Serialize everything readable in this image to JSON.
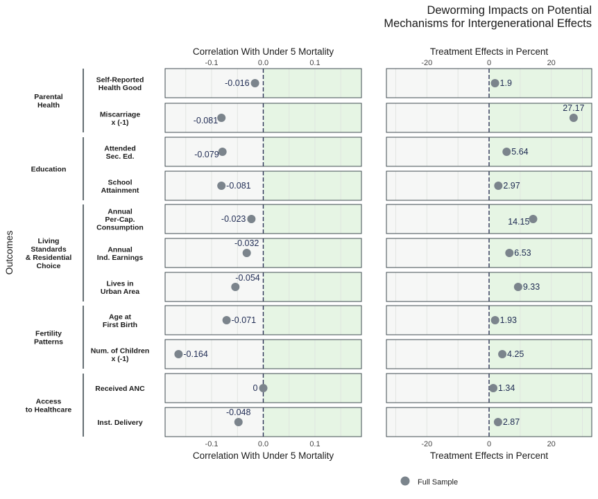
{
  "chart_data": {
    "type": "scatter",
    "title_lines": [
      "Deworming Impacts on Potential",
      "Mechanisms for Intergenerational Effects"
    ],
    "y_axis_label": "Outcomes",
    "legend": {
      "label": "Full Sample",
      "color": "#7b848c",
      "placement": "bottom"
    },
    "panels": [
      {
        "key": "left",
        "xlabel": "Correlation With Under 5 Mortality",
        "xlim": [
          -0.19,
          0.19
        ],
        "ticks": [
          -0.1,
          0.0,
          0.1
        ],
        "tick_labels": [
          "-0.1",
          "0.0",
          "0.1"
        ]
      },
      {
        "key": "right",
        "xlabel": "Treatment Effects in Percent",
        "xlim": [
          -33,
          33
        ],
        "ticks": [
          -20,
          0,
          20
        ],
        "tick_labels": [
          "-20",
          "0",
          "20"
        ]
      }
    ],
    "groups": [
      {
        "label": [
          "Parental",
          "Health"
        ],
        "rows": [
          0,
          1
        ]
      },
      {
        "label": [
          "Education"
        ],
        "rows": [
          2,
          3
        ]
      },
      {
        "label": [
          "Living",
          "Standards",
          "& Residential",
          "Choice"
        ],
        "rows": [
          4,
          5,
          6
        ]
      },
      {
        "label": [
          "Fertility",
          "Patterns"
        ],
        "rows": [
          7,
          8
        ]
      },
      {
        "label": [
          "Access",
          "to Healthcare"
        ],
        "rows": [
          9,
          10
        ]
      }
    ],
    "rows": [
      {
        "label": [
          "Self-Reported",
          "Health Good"
        ],
        "corr": -0.016,
        "corr_label": "-0.016",
        "corr_pos": "left",
        "te": 1.9,
        "te_label": "1.9",
        "te_pos": "right"
      },
      {
        "label": [
          "Miscarriage",
          "x (-1)"
        ],
        "corr": -0.081,
        "corr_label": "-0.081",
        "corr_pos": "below-left",
        "te": 27.17,
        "te_label": "27.17",
        "te_pos": "above"
      },
      {
        "label": [
          "Attended",
          "Sec. Ed."
        ],
        "corr": -0.079,
        "corr_label": "-0.079",
        "corr_pos": "below-left",
        "te": 5.64,
        "te_label": "5.64",
        "te_pos": "right"
      },
      {
        "label": [
          "School",
          "Attainment"
        ],
        "corr": -0.081,
        "corr_label": "-0.081",
        "corr_pos": "right",
        "te": 2.97,
        "te_label": "2.97",
        "te_pos": "right"
      },
      {
        "label": [
          "Annual",
          "Per-Cap.",
          "Consumption"
        ],
        "corr": -0.023,
        "corr_label": "-0.023",
        "corr_pos": "left",
        "te": 14.15,
        "te_label": "14.15",
        "te_pos": "below-left"
      },
      {
        "label": [
          "Annual",
          "Ind. Earnings"
        ],
        "corr": -0.032,
        "corr_label": "-0.032",
        "corr_pos": "above",
        "te": 6.53,
        "te_label": "6.53",
        "te_pos": "right"
      },
      {
        "label": [
          "Lives in",
          "Urban Area"
        ],
        "corr": -0.054,
        "corr_label": "-0.054",
        "corr_pos": "above-right",
        "te": 9.33,
        "te_label": "9.33",
        "te_pos": "right"
      },
      {
        "label": [
          "Age at",
          "First Birth"
        ],
        "corr": -0.071,
        "corr_label": "-0.071",
        "corr_pos": "right",
        "te": 1.93,
        "te_label": "1.93",
        "te_pos": "right"
      },
      {
        "label": [
          "Num. of Children",
          "x (-1)"
        ],
        "corr": -0.164,
        "corr_label": "-0.164",
        "corr_pos": "right",
        "te": 4.25,
        "te_label": "4.25",
        "te_pos": "right"
      },
      {
        "label": [
          "Received ANC"
        ],
        "corr": 0.0,
        "corr_label": "0",
        "corr_pos": "left",
        "te": 1.34,
        "te_label": "1.34",
        "te_pos": "right"
      },
      {
        "label": [
          "Inst. Delivery"
        ],
        "corr": -0.048,
        "corr_label": "-0.048",
        "corr_pos": "above",
        "te": 2.87,
        "te_label": "2.87",
        "te_pos": "right"
      }
    ],
    "colors": {
      "negative_region": "#f6f7f6",
      "positive_region": "#e6f5e4",
      "grid": "#dfe3df",
      "panel_border": "#3d4a4f",
      "zero_line": "#2b3256",
      "point": "#7b848c",
      "value_label": "#1e2a52",
      "text": "#1a1a1a"
    }
  }
}
